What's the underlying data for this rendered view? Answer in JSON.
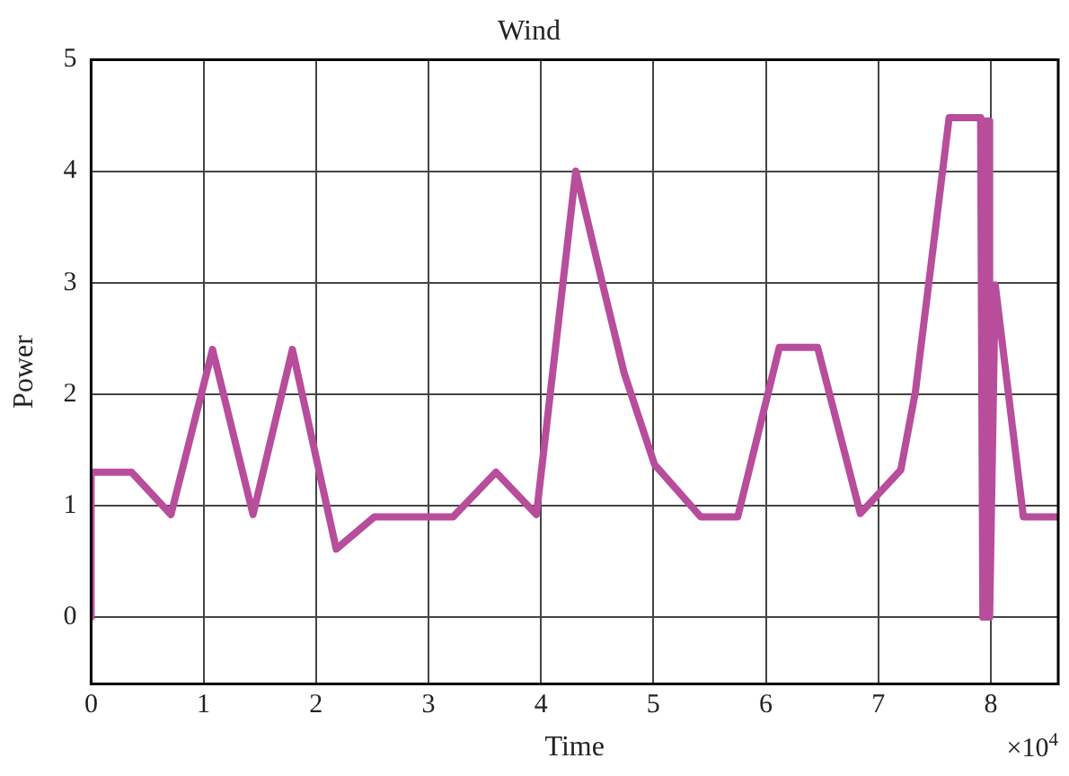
{
  "chart_data": {
    "type": "line",
    "title": "Wind",
    "xlabel": "Time",
    "ylabel": "Power",
    "x": [
      0,
      0,
      0.36,
      0.71,
      1.08,
      1.44,
      1.79,
      2.18,
      2.52,
      3.22,
      3.6,
      3.96,
      4.31,
      4.55,
      4.74,
      5.01,
      5.42,
      5.75,
      6.12,
      6.46,
      6.84,
      7.2,
      7.33,
      7.63,
      7.91,
      7.93,
      7.95,
      7.96,
      7.98,
      7.99,
      8.04,
      8.29,
      8.6
    ],
    "series": [
      {
        "color": "#b84d9b",
        "values": [
          0,
          1.3,
          1.3,
          0.92,
          2.4,
          0.92,
          2.4,
          0.61,
          0.9,
          0.9,
          1.3,
          0.92,
          4.0,
          2.98,
          2.19,
          1.37,
          0.9,
          0.9,
          2.42,
          2.42,
          0.93,
          1.32,
          2.02,
          4.48,
          4.48,
          0,
          4.45,
          0,
          4.45,
          0,
          2.98,
          0.9,
          0.9
        ]
      }
    ],
    "xlim": [
      0,
      8.6
    ],
    "xticks": [
      0,
      1,
      2,
      3,
      4,
      5,
      6,
      7,
      8
    ],
    "ylim": [
      -0.6,
      5
    ],
    "yticks": [
      0,
      1,
      2,
      3,
      4,
      5
    ],
    "grid": true,
    "legend": false,
    "marker": "none",
    "line_style": "solid",
    "annotations": [
      "×10$^{4}$"
    ]
  }
}
